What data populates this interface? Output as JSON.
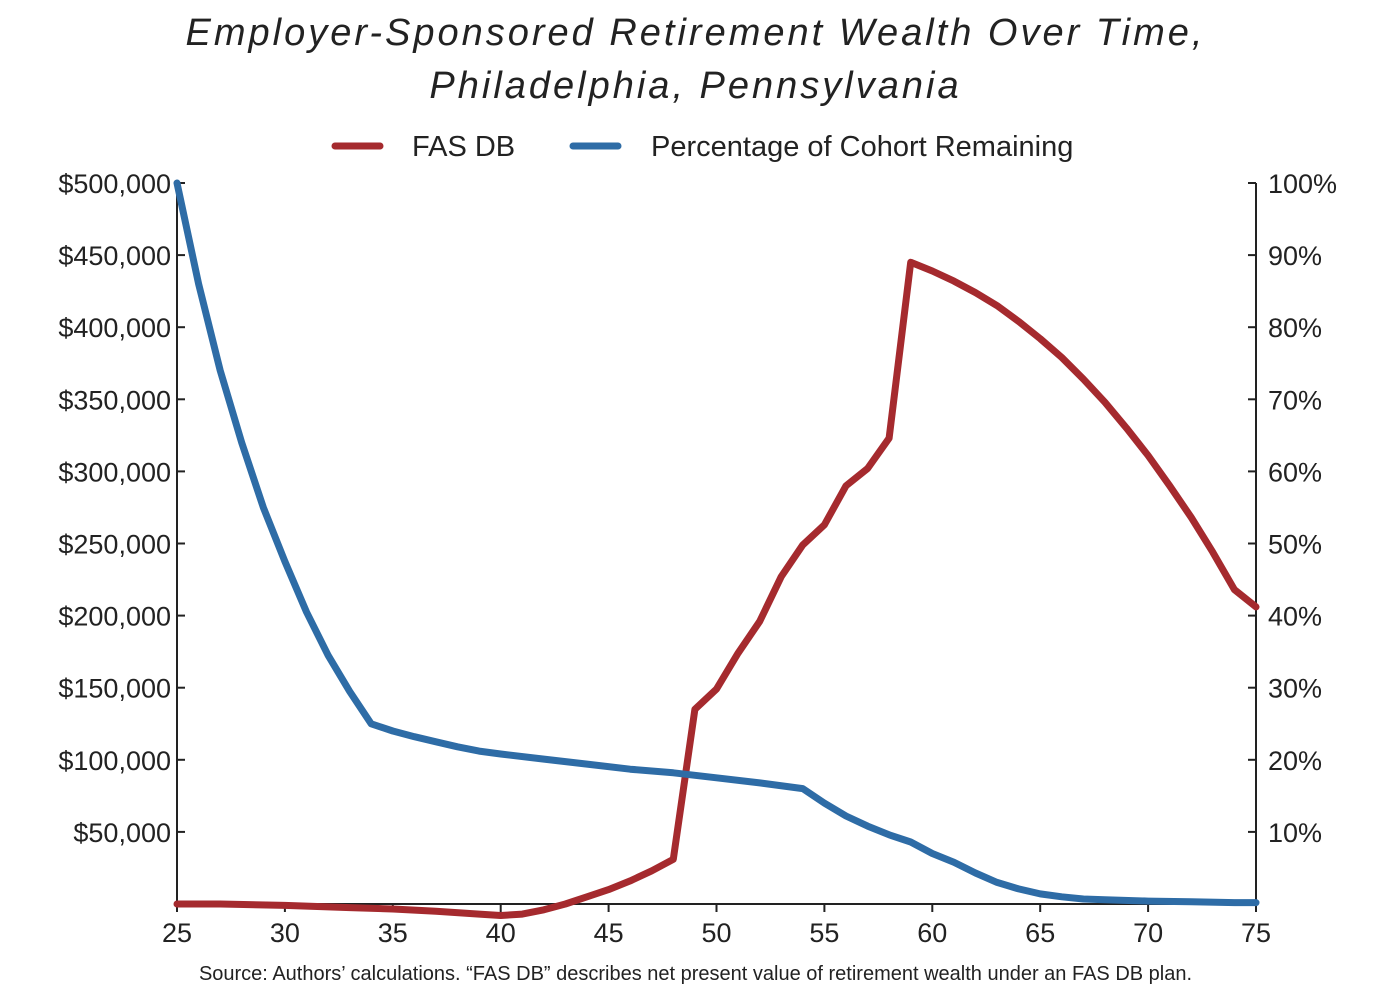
{
  "chart_data": {
    "type": "line",
    "title": "Employer-Sponsored Retirement Wealth Over Time,",
    "subtitle": "Philadelphia, Pennsylvania",
    "xlabel": "",
    "ylabel": "",
    "xlim": [
      25,
      75
    ],
    "ylim_left": [
      0,
      500000
    ],
    "ylim_right": [
      0,
      100
    ],
    "x_ticks": [
      25,
      30,
      35,
      40,
      45,
      50,
      55,
      60,
      65,
      70,
      75
    ],
    "y_left_ticks": [
      {
        "value": 50000,
        "label": "$50,000"
      },
      {
        "value": 100000,
        "label": "$100,000"
      },
      {
        "value": 150000,
        "label": "$150,000"
      },
      {
        "value": 200000,
        "label": "$200,000"
      },
      {
        "value": 250000,
        "label": "$250,000"
      },
      {
        "value": 300000,
        "label": "$300,000"
      },
      {
        "value": 350000,
        "label": "$350,000"
      },
      {
        "value": 400000,
        "label": "$400,000"
      },
      {
        "value": 450000,
        "label": "$450,000"
      },
      {
        "value": 500000,
        "label": "$500,000"
      }
    ],
    "y_right_ticks": [
      {
        "value": 10,
        "label": "10%"
      },
      {
        "value": 20,
        "label": "20%"
      },
      {
        "value": 30,
        "label": "30%"
      },
      {
        "value": 40,
        "label": "40%"
      },
      {
        "value": 50,
        "label": "50%"
      },
      {
        "value": 60,
        "label": "60%"
      },
      {
        "value": 70,
        "label": "70%"
      },
      {
        "value": 80,
        "label": "80%"
      },
      {
        "value": 90,
        "label": "90%"
      },
      {
        "value": 100,
        "label": "100%"
      }
    ],
    "grid": false,
    "legend_position": "top-center",
    "series": [
      {
        "name": "FAS DB",
        "axis": "left",
        "color": "#a52a2e",
        "x": [
          25,
          27,
          30,
          33,
          35,
          37,
          39,
          40,
          41,
          42,
          43,
          44,
          45,
          46,
          47,
          48,
          49,
          50,
          51,
          52,
          53,
          54,
          55,
          56,
          57,
          58,
          59,
          60,
          61,
          62,
          63,
          64,
          65,
          66,
          67,
          68,
          69,
          70,
          71,
          72,
          73,
          74,
          75
        ],
        "y": [
          0,
          0,
          -1000,
          -2500,
          -3500,
          -5000,
          -7000,
          -8000,
          -7000,
          -4000,
          0,
          5000,
          10000,
          16000,
          23000,
          31000,
          135000,
          149000,
          174000,
          196000,
          227000,
          249000,
          263000,
          290000,
          302000,
          323000,
          445000,
          439000,
          432000,
          424000,
          415000,
          404000,
          392000,
          379000,
          364000,
          348000,
          330000,
          311000,
          290000,
          268000,
          244000,
          218000,
          206000
        ]
      },
      {
        "name": "Percentage of Cohort Remaining",
        "axis": "right",
        "color": "#2e6ca6",
        "x": [
          25,
          26,
          27,
          28,
          29,
          30,
          31,
          32,
          33,
          34,
          35,
          36,
          37,
          38,
          39,
          40,
          42,
          44,
          46,
          48,
          50,
          52,
          54,
          55,
          56,
          57,
          58,
          59,
          60,
          61,
          62,
          63,
          64,
          65,
          66,
          67,
          68,
          70,
          72,
          74,
          75
        ],
        "y": [
          100,
          86,
          74,
          64,
          55,
          47.5,
          40.5,
          34.5,
          29.5,
          25,
          24,
          23.2,
          22.5,
          21.8,
          21.2,
          20.8,
          20.1,
          19.4,
          18.7,
          18.2,
          17.5,
          16.8,
          16,
          14,
          12.2,
          10.8,
          9.6,
          8.6,
          7,
          5.8,
          4.3,
          3,
          2.1,
          1.4,
          1,
          0.7,
          0.6,
          0.4,
          0.3,
          0.2,
          0.2
        ]
      }
    ],
    "source": "Source: Authors’ calculations. “FAS DB” describes net present value of retirement wealth under an FAS DB plan."
  }
}
